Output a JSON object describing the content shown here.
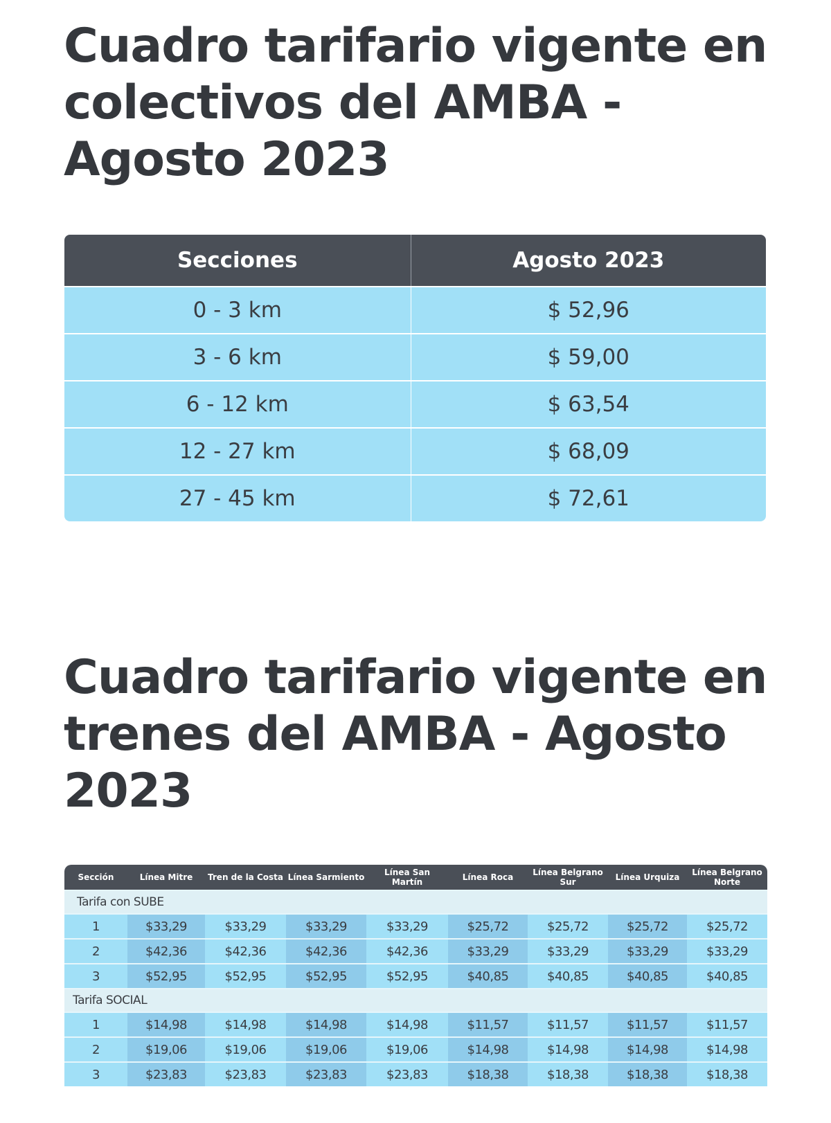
{
  "bus": {
    "title": "Cuadro tarifario vigente en colectivos del AMBA - Agosto 2023",
    "headers": [
      "Secciones",
      "Agosto 2023"
    ],
    "rows": [
      [
        "0 - 3 km",
        "$ 52,96"
      ],
      [
        "3 - 6 km",
        "$ 59,00"
      ],
      [
        "6 - 12 km",
        "$ 63,54"
      ],
      [
        "12 - 27 km",
        "$ 68,09"
      ],
      [
        "27 - 45  km",
        "$ 72,61"
      ]
    ]
  },
  "train": {
    "title": "Cuadro tarifario vigente en trenes del AMBA - Agosto 2023",
    "headers": [
      "Sección",
      "Línea Mitre",
      "Tren de la Costa",
      "Línea Sarmiento",
      "Línea San Martín",
      "Línea Roca",
      "Línea Belgrano Sur",
      "Línea Urquiza",
      "Línea Belgrano Norte"
    ],
    "groups": [
      {
        "label": "Tarifa con SUBE",
        "rows": [
          [
            "1",
            "$33,29",
            "$33,29",
            "$33,29",
            "$33,29",
            "$25,72",
            "$25,72",
            "$25,72",
            "$25,72"
          ],
          [
            "2",
            "$42,36",
            "$42,36",
            "$42,36",
            "$42,36",
            "$33,29",
            "$33,29",
            "$33,29",
            "$33,29"
          ],
          [
            "3",
            "$52,95",
            "$52,95",
            "$52,95",
            "$52,95",
            "$40,85",
            "$40,85",
            "$40,85",
            "$40,85"
          ]
        ]
      },
      {
        "label": "Tarifa SOCIAL",
        "rows": [
          [
            "1",
            "$14,98",
            "$14,98",
            "$14,98",
            "$14,98",
            "$11,57",
            "$11,57",
            "$11,57",
            "$11,57"
          ],
          [
            "2",
            "$19,06",
            "$19,06",
            "$19,06",
            "$19,06",
            "$14,98",
            "$14,98",
            "$14,98",
            "$14,98"
          ],
          [
            "3",
            "$23,83",
            "$23,83",
            "$23,83",
            "$23,83",
            "$18,38",
            "$18,38",
            "$18,38",
            "$18,38"
          ]
        ]
      }
    ]
  },
  "colors": {
    "header": "#4a4f57",
    "row": "#a1e0f7",
    "row_dark": "#8fcbea",
    "group_row": "#dff0f5",
    "text": "#35383d"
  }
}
